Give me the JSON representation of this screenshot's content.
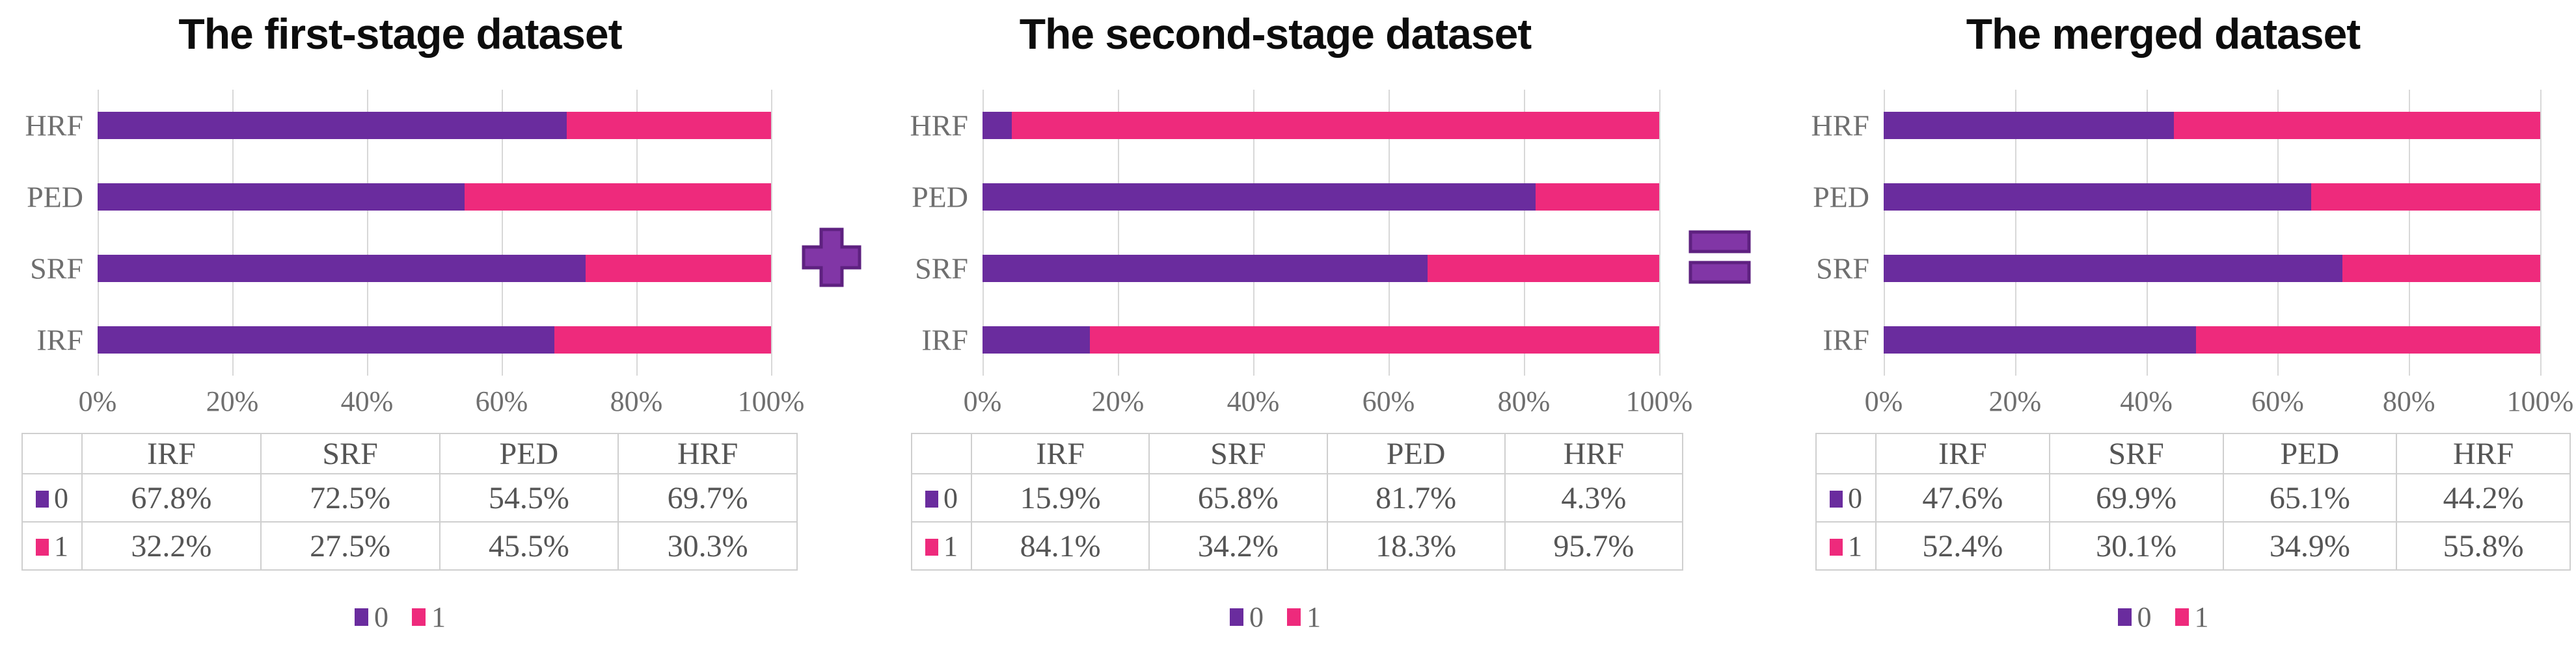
{
  "colors": {
    "series0_purple": "#6A2C9E",
    "series1_pink": "#EE2A7C",
    "operator_fill": "#8136A6",
    "operator_border": "#5E2180",
    "gridline": "#D8D8D8",
    "axis_text": "#6F6F6F",
    "table_text": "#555555",
    "table_border": "#CFCFCF",
    "title_text": "#0D0D0D"
  },
  "operators": {
    "plus": "+",
    "equals": "="
  },
  "chart_data": [
    {
      "type": "bar",
      "stacked": true,
      "orientation": "horizontal",
      "title": "The first-stage dataset",
      "categories": [
        "IRF",
        "SRF",
        "PED",
        "HRF"
      ],
      "bar_order_top_to_bottom": [
        "HRF",
        "PED",
        "SRF",
        "IRF"
      ],
      "series": [
        {
          "name": "0",
          "color": "#6A2C9E",
          "values": [
            67.8,
            72.5,
            54.5,
            69.7
          ]
        },
        {
          "name": "1",
          "color": "#EE2A7C",
          "values": [
            32.2,
            27.5,
            45.5,
            30.3
          ]
        }
      ],
      "x_ticks": [
        "0%",
        "20%",
        "40%",
        "60%",
        "80%",
        "100%"
      ],
      "xlim": [
        0,
        100
      ],
      "grid": "vertical",
      "legend": [
        "0",
        "1"
      ],
      "legend_position": "bottom"
    },
    {
      "type": "bar",
      "stacked": true,
      "orientation": "horizontal",
      "title": "The second-stage dataset",
      "categories": [
        "IRF",
        "SRF",
        "PED",
        "HRF"
      ],
      "bar_order_top_to_bottom": [
        "HRF",
        "PED",
        "SRF",
        "IRF"
      ],
      "series": [
        {
          "name": "0",
          "color": "#6A2C9E",
          "values": [
            15.9,
            65.8,
            81.7,
            4.3
          ]
        },
        {
          "name": "1",
          "color": "#EE2A7C",
          "values": [
            84.1,
            34.2,
            18.3,
            95.7
          ]
        }
      ],
      "x_ticks": [
        "0%",
        "20%",
        "40%",
        "60%",
        "80%",
        "100%"
      ],
      "xlim": [
        0,
        100
      ],
      "grid": "vertical",
      "legend": [
        "0",
        "1"
      ],
      "legend_position": "bottom"
    },
    {
      "type": "bar",
      "stacked": true,
      "orientation": "horizontal",
      "title": "The merged dataset",
      "categories": [
        "IRF",
        "SRF",
        "PED",
        "HRF"
      ],
      "bar_order_top_to_bottom": [
        "HRF",
        "PED",
        "SRF",
        "IRF"
      ],
      "series": [
        {
          "name": "0",
          "color": "#6A2C9E",
          "values": [
            47.6,
            69.9,
            65.1,
            44.2
          ]
        },
        {
          "name": "1",
          "color": "#EE2A7C",
          "values": [
            52.4,
            30.1,
            34.9,
            55.8
          ]
        }
      ],
      "x_ticks": [
        "0%",
        "20%",
        "40%",
        "60%",
        "80%",
        "100%"
      ],
      "xlim": [
        0,
        100
      ],
      "grid": "vertical",
      "legend": [
        "0",
        "1"
      ],
      "legend_position": "bottom"
    }
  ]
}
